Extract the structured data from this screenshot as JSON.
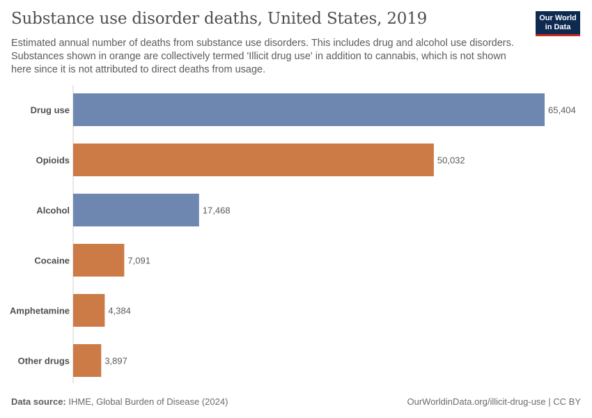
{
  "header": {
    "title": "Substance use disorder deaths, United States, 2019",
    "subtitle": "Estimated annual number of deaths from substance use disorders. This includes drug and alcohol use disorders. Substances shown in orange are collectively termed 'Illicit drug use' in addition to cannabis, which is not shown here since it is not attributed to direct deaths from usage."
  },
  "logo": {
    "line1": "Our World",
    "line2": "in Data",
    "bg_color": "#0e2a50",
    "accent_color": "#ce261e"
  },
  "chart_data": {
    "type": "bar",
    "orientation": "horizontal",
    "categories": [
      "Drug use",
      "Opioids",
      "Alcohol",
      "Cocaine",
      "Amphetamine",
      "Other drugs"
    ],
    "values": [
      65404,
      50032,
      17468,
      7091,
      4384,
      3897
    ],
    "value_labels": [
      "65,404",
      "50,032",
      "17,468",
      "7,091",
      "4,384",
      "3,897"
    ],
    "colors": [
      "#6d87b0",
      "#cc7a46",
      "#6d87b0",
      "#cc7a46",
      "#cc7a46",
      "#cc7a46"
    ],
    "xlim": [
      0,
      65404
    ],
    "grid": false
  },
  "footer": {
    "source_label": "Data source:",
    "source_text": "IHME, Global Burden of Disease (2024)",
    "url_license": "OurWorldinData.org/illicit-drug-use | CC BY"
  }
}
